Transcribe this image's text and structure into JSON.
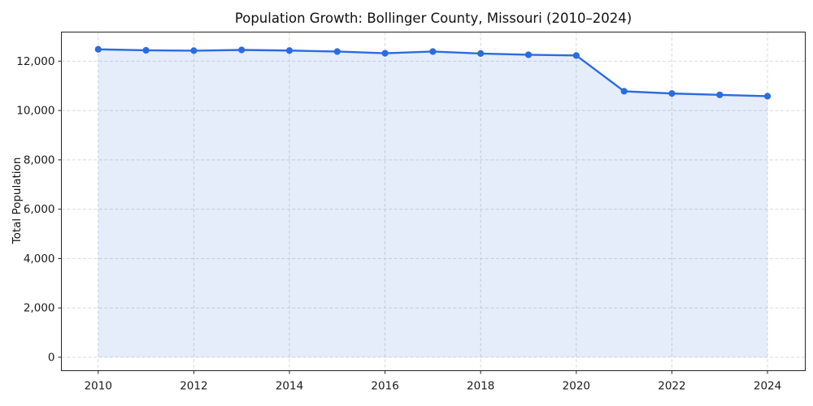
{
  "chart_data": {
    "type": "area",
    "title": "Population Growth: Bollinger County, Missouri (2010–2024)",
    "xlabel": "",
    "ylabel": "Total Population",
    "x": [
      2010,
      2011,
      2012,
      2013,
      2014,
      2015,
      2016,
      2017,
      2018,
      2019,
      2020,
      2021,
      2022,
      2023,
      2024
    ],
    "series": [
      {
        "name": "Total Population",
        "values": [
          12480,
          12440,
          12425,
          12455,
          12430,
          12390,
          12320,
          12390,
          12310,
          12260,
          12230,
          10780,
          10690,
          10635,
          10580
        ]
      }
    ],
    "xticks": [
      2010,
      2012,
      2014,
      2016,
      2018,
      2020,
      2022,
      2024
    ],
    "xtick_labels": [
      "2010",
      "2012",
      "2014",
      "2016",
      "2018",
      "2020",
      "2022",
      "2024"
    ],
    "yticks": [
      0,
      2000,
      4000,
      6000,
      8000,
      10000,
      12000
    ],
    "ytick_labels": [
      "0",
      "2,000",
      "4,000",
      "6,000",
      "8,000",
      "10,000",
      "12,000"
    ],
    "xlim": [
      2009.23,
      2024.79
    ],
    "ylim": [
      -544,
      13179
    ],
    "grid": true,
    "legend": "none",
    "marker": "circle",
    "fill_to": 0,
    "colors": {
      "line": "#2a6ce0",
      "fill_rgba": "rgba(42,108,224,0.12)",
      "grid": "#d9d9d9",
      "spine": "#262626",
      "tick_text": "#1a1a1a"
    }
  }
}
